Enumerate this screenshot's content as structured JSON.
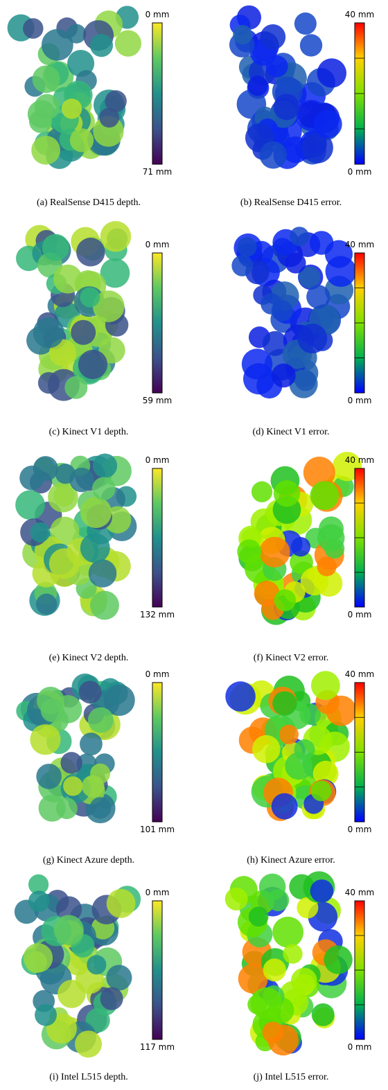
{
  "panels": [
    {
      "caption": "(a) RealSense D415 depth.",
      "colorbar_top": "0 mm",
      "colorbar_bottom": "71 mm"
    },
    {
      "caption": "(b) RealSense D415 error.",
      "colorbar_top": "40 mm",
      "colorbar_bottom": "0 mm"
    },
    {
      "caption": "(c) Kinect V1 depth.",
      "colorbar_top": "0 mm",
      "colorbar_bottom": "59 mm"
    },
    {
      "caption": "(d) Kinect V1 error.",
      "colorbar_top": "40 mm",
      "colorbar_bottom": "0 mm"
    },
    {
      "caption": "(e) Kinect V2 depth.",
      "colorbar_top": "0 mm",
      "colorbar_bottom": "132 mm"
    },
    {
      "caption": "(f) Kinect V2 error.",
      "colorbar_top": "40 mm",
      "colorbar_bottom": "0 mm"
    },
    {
      "caption": "(g) Kinect Azure depth.",
      "colorbar_top": "0 mm",
      "colorbar_bottom": "101 mm"
    },
    {
      "caption": "(h) Kinect Azure error.",
      "colorbar_top": "40 mm",
      "colorbar_bottom": "0 mm"
    },
    {
      "caption": "(i) Intel L515 depth.",
      "colorbar_top": "0 mm",
      "colorbar_bottom": "117 mm"
    },
    {
      "caption": "(j) Intel L515 error.",
      "colorbar_top": "40 mm",
      "colorbar_bottom": "0 mm"
    }
  ]
}
